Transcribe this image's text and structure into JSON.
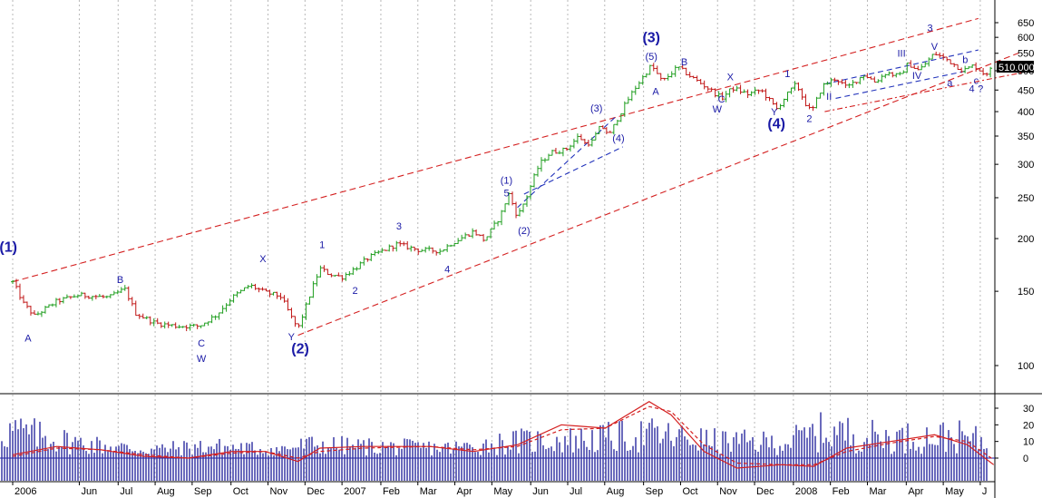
{
  "chart_data": [
    {
      "type": "ohlc",
      "title": "",
      "xlabel": "",
      "ylabel": "",
      "yscale": "log",
      "ylim": [
        70,
        690
      ],
      "grid": "vertical dotted",
      "colors": {
        "up": "#1f9e1f",
        "down": "#c01616",
        "channel": "#d42020",
        "subchannel": "#2233bb",
        "labels": "#1a1aa6"
      },
      "y_ticks": [
        "100",
        "150",
        "200",
        "250",
        "300",
        "350",
        "400",
        "450",
        "500",
        "550",
        "600",
        "650"
      ],
      "last_price_label": "510.000",
      "last_price": 510,
      "price_path": [
        {
          "t": 0,
          "v": 158
        },
        {
          "t": 0.5,
          "v": 140
        },
        {
          "t": 1.0,
          "v": 131
        },
        {
          "t": 2.0,
          "v": 142
        },
        {
          "t": 3.0,
          "v": 147
        },
        {
          "t": 4.4,
          "v": 145
        },
        {
          "t": 5.1,
          "v": 152
        },
        {
          "t": 5.6,
          "v": 133
        },
        {
          "t": 6.5,
          "v": 126
        },
        {
          "t": 7.5,
          "v": 124
        },
        {
          "t": 8.5,
          "v": 124
        },
        {
          "t": 9.3,
          "v": 132
        },
        {
          "t": 10.0,
          "v": 145
        },
        {
          "t": 10.8,
          "v": 155
        },
        {
          "t": 11.5,
          "v": 149
        },
        {
          "t": 12.2,
          "v": 146
        },
        {
          "t": 12.7,
          "v": 130
        },
        {
          "t": 13.0,
          "v": 122
        },
        {
          "t": 13.4,
          "v": 140
        },
        {
          "t": 14.0,
          "v": 170
        },
        {
          "t": 14.4,
          "v": 165
        },
        {
          "t": 15.0,
          "v": 162
        },
        {
          "t": 15.6,
          "v": 170
        },
        {
          "t": 16.2,
          "v": 180
        },
        {
          "t": 17.5,
          "v": 194
        },
        {
          "t": 18.5,
          "v": 188
        },
        {
          "t": 19.5,
          "v": 187
        },
        {
          "t": 20.0,
          "v": 195
        },
        {
          "t": 21.0,
          "v": 208
        },
        {
          "t": 21.5,
          "v": 198
        },
        {
          "t": 22.2,
          "v": 225
        },
        {
          "t": 22.6,
          "v": 255
        },
        {
          "t": 23.0,
          "v": 225
        },
        {
          "t": 23.4,
          "v": 250
        },
        {
          "t": 24.0,
          "v": 300
        },
        {
          "t": 24.5,
          "v": 320
        },
        {
          "t": 25.2,
          "v": 325
        },
        {
          "t": 25.8,
          "v": 350
        },
        {
          "t": 26.1,
          "v": 335
        },
        {
          "t": 26.4,
          "v": 340
        },
        {
          "t": 26.8,
          "v": 370
        },
        {
          "t": 27.2,
          "v": 352
        },
        {
          "t": 27.5,
          "v": 380
        },
        {
          "t": 28.3,
          "v": 450
        },
        {
          "t": 28.8,
          "v": 490
        },
        {
          "t": 29.1,
          "v": 515
        },
        {
          "t": 29.6,
          "v": 470
        },
        {
          "t": 30.3,
          "v": 510
        },
        {
          "t": 31.0,
          "v": 480
        },
        {
          "t": 31.8,
          "v": 450
        },
        {
          "t": 32.3,
          "v": 430
        },
        {
          "t": 32.8,
          "v": 455
        },
        {
          "t": 33.5,
          "v": 440
        },
        {
          "t": 34.1,
          "v": 450
        },
        {
          "t": 34.8,
          "v": 405
        },
        {
          "t": 35.3,
          "v": 440
        },
        {
          "t": 35.7,
          "v": 465
        },
        {
          "t": 36.1,
          "v": 420
        },
        {
          "t": 36.4,
          "v": 398
        },
        {
          "t": 36.9,
          "v": 460
        },
        {
          "t": 37.5,
          "v": 480
        },
        {
          "t": 38.0,
          "v": 455
        },
        {
          "t": 38.8,
          "v": 490
        },
        {
          "t": 39.3,
          "v": 470
        },
        {
          "t": 39.8,
          "v": 495
        },
        {
          "t": 40.4,
          "v": 485
        },
        {
          "t": 40.8,
          "v": 520
        },
        {
          "t": 41.3,
          "v": 500
        },
        {
          "t": 42.0,
          "v": 550
        },
        {
          "t": 42.6,
          "v": 530
        },
        {
          "t": 43.3,
          "v": 500
        },
        {
          "t": 43.8,
          "v": 515
        },
        {
          "t": 44.3,
          "v": 490
        },
        {
          "t": 44.7,
          "v": 510
        }
      ],
      "indicator": {
        "y_ticks": [
          "30",
          "20",
          "10",
          "0"
        ],
        "ylim": [
          -12,
          36
        ],
        "histogram_path": [
          {
            "t": 0,
            "v": 16
          },
          {
            "t": 3,
            "v": 9
          },
          {
            "t": 6,
            "v": 5
          },
          {
            "t": 9,
            "v": 7
          },
          {
            "t": 12,
            "v": 5
          },
          {
            "t": 13.5,
            "v": 8
          },
          {
            "t": 16,
            "v": 7
          },
          {
            "t": 20,
            "v": 6
          },
          {
            "t": 23,
            "v": 10
          },
          {
            "t": 26,
            "v": 11
          },
          {
            "t": 29,
            "v": 14
          },
          {
            "t": 32,
            "v": 10
          },
          {
            "t": 35,
            "v": 9
          },
          {
            "t": 37,
            "v": 16
          },
          {
            "t": 40,
            "v": 12
          },
          {
            "t": 43,
            "v": 13
          },
          {
            "t": 45,
            "v": 8
          }
        ],
        "oscillator": [
          {
            "t": 0,
            "v": 2
          },
          {
            "t": 2,
            "v": 7
          },
          {
            "t": 4,
            "v": 5
          },
          {
            "t": 6,
            "v": 1
          },
          {
            "t": 8,
            "v": 0
          },
          {
            "t": 10,
            "v": 4
          },
          {
            "t": 11.5,
            "v": 4
          },
          {
            "t": 13,
            "v": -2
          },
          {
            "t": 14,
            "v": 6
          },
          {
            "t": 16,
            "v": 7
          },
          {
            "t": 19,
            "v": 7
          },
          {
            "t": 21,
            "v": 4
          },
          {
            "t": 23,
            "v": 8
          },
          {
            "t": 25,
            "v": 20
          },
          {
            "t": 27,
            "v": 18
          },
          {
            "t": 29,
            "v": 34
          },
          {
            "t": 30,
            "v": 26
          },
          {
            "t": 31.5,
            "v": 4
          },
          {
            "t": 33,
            "v": -6
          },
          {
            "t": 35,
            "v": -4
          },
          {
            "t": 36.5,
            "v": -5
          },
          {
            "t": 38,
            "v": 6
          },
          {
            "t": 40,
            "v": 10
          },
          {
            "t": 42,
            "v": 14
          },
          {
            "t": 43.5,
            "v": 8
          },
          {
            "t": 44.7,
            "v": -4
          }
        ],
        "signal": [
          {
            "t": 0,
            "v": 1
          },
          {
            "t": 2,
            "v": 6
          },
          {
            "t": 4,
            "v": 5
          },
          {
            "t": 6,
            "v": 2
          },
          {
            "t": 8,
            "v": 0
          },
          {
            "t": 10,
            "v": 3
          },
          {
            "t": 11.5,
            "v": 4
          },
          {
            "t": 13,
            "v": 0
          },
          {
            "t": 14,
            "v": 4
          },
          {
            "t": 16,
            "v": 6
          },
          {
            "t": 19,
            "v": 7
          },
          {
            "t": 21,
            "v": 5
          },
          {
            "t": 23,
            "v": 7
          },
          {
            "t": 25,
            "v": 17
          },
          {
            "t": 27,
            "v": 18
          },
          {
            "t": 29,
            "v": 31
          },
          {
            "t": 30,
            "v": 28
          },
          {
            "t": 31.5,
            "v": 8
          },
          {
            "t": 33,
            "v": -3
          },
          {
            "t": 35,
            "v": -4
          },
          {
            "t": 36.5,
            "v": -4
          },
          {
            "t": 38,
            "v": 4
          },
          {
            "t": 40,
            "v": 9
          },
          {
            "t": 42,
            "v": 13
          },
          {
            "t": 43.5,
            "v": 10
          },
          {
            "t": 44.7,
            "v": -1
          }
        ]
      },
      "x_ticks": [
        {
          "label": "2006",
          "t": 0
        },
        {
          "label": "Jun",
          "t": 3.6
        },
        {
          "label": "Jul",
          "t": 5.7
        },
        {
          "label": "Aug",
          "t": 7.7
        },
        {
          "label": "Sep",
          "t": 9.7
        },
        {
          "label": "Oct",
          "t": 11.8
        },
        {
          "label": "Nov",
          "t": 13.8
        },
        {
          "label": "Dec",
          "t": 15.8
        },
        {
          "label": "2007",
          "t": 17.8
        },
        {
          "label": "Feb",
          "t": 19.9
        },
        {
          "label": "Mar",
          "t": 21.9
        },
        {
          "label": "Apr",
          "t": 23.9
        },
        {
          "label": "May",
          "t": 25.9
        },
        {
          "label": "Jun",
          "t": 28.0
        },
        {
          "label": "Jul",
          "t": 30.0
        },
        {
          "label": "Aug",
          "t": 32.0
        },
        {
          "label": "Sep",
          "t": 34.1
        },
        {
          "label": "Oct",
          "t": 36.1
        },
        {
          "label": "Nov",
          "t": 38.1
        },
        {
          "label": "Dec",
          "t": 40.1
        },
        {
          "label": "2008",
          "t": 42.2
        },
        {
          "label": "Feb",
          "t": 44.2
        },
        {
          "label": "Mar",
          "t": 46.2
        },
        {
          "label": "Apr",
          "t": 48.3
        },
        {
          "label": "May",
          "t": 50.3
        },
        {
          "label": "J",
          "t": 52.3
        }
      ],
      "channels": [
        {
          "name": "",
          "style": "red-dashed",
          "p1": {
            "t": 0,
            "v": 158
          },
          "p2": {
            "t": 44,
            "v": 665
          }
        },
        {
          "name": "",
          "style": "red-dashed",
          "p1": {
            "t": 13.0,
            "v": 118
          },
          "p2": {
            "t": 46.0,
            "v": 555
          }
        },
        {
          "name": "",
          "style": "red-dashdot",
          "p1": {
            "t": 37.0,
            "v": 400
          },
          "p2": {
            "t": 46.0,
            "v": 495
          }
        },
        {
          "name": "",
          "style": "blue-dashed",
          "p1": {
            "t": 37.0,
            "v": 465
          },
          "p2": {
            "t": 44.0,
            "v": 560
          }
        },
        {
          "name": "",
          "style": "blue-dashed",
          "p1": {
            "t": 37.5,
            "v": 430
          },
          "p2": {
            "t": 43.5,
            "v": 500
          }
        },
        {
          "name": "",
          "style": "blue-dashed",
          "p1": {
            "t": 23.0,
            "v": 237
          },
          "p2": {
            "t": 27.5,
            "v": 390
          }
        },
        {
          "name": "",
          "style": "blue-dashed",
          "p1": {
            "t": 23.3,
            "v": 255
          },
          "p2": {
            "t": 27.8,
            "v": 330
          }
        }
      ],
      "wave_labels": [
        {
          "text": "(1)",
          "t": -0.2,
          "v": 186,
          "size": "large"
        },
        {
          "text": "A",
          "t": 0.7,
          "v": 114,
          "size": "small"
        },
        {
          "text": "B",
          "t": 4.9,
          "v": 157,
          "size": "small"
        },
        {
          "text": "C",
          "t": 8.6,
          "v": 111,
          "size": "small"
        },
        {
          "text": "W",
          "t": 8.6,
          "v": 102,
          "size": "small"
        },
        {
          "text": "X",
          "t": 11.4,
          "v": 176,
          "size": "small"
        },
        {
          "text": "Y",
          "t": 12.7,
          "v": 115,
          "size": "small"
        },
        {
          "text": "(2)",
          "t": 13.1,
          "v": 107,
          "size": "large"
        },
        {
          "text": "1",
          "t": 14.1,
          "v": 190,
          "size": "small"
        },
        {
          "text": "2",
          "t": 15.6,
          "v": 148,
          "size": "small"
        },
        {
          "text": "3",
          "t": 17.6,
          "v": 210,
          "size": "small"
        },
        {
          "text": "4",
          "t": 19.8,
          "v": 166,
          "size": "small"
        },
        {
          "text": "(1)",
          "t": 22.5,
          "v": 270,
          "size": "small"
        },
        {
          "text": "5",
          "t": 22.5,
          "v": 252,
          "size": "small"
        },
        {
          "text": "(2)",
          "t": 23.3,
          "v": 205,
          "size": "small"
        },
        {
          "text": "(3)",
          "t": 26.6,
          "v": 400,
          "size": "small"
        },
        {
          "text": "(4)",
          "t": 27.6,
          "v": 340,
          "size": "small"
        },
        {
          "text": "(3)",
          "t": 29.1,
          "v": 585,
          "size": "large"
        },
        {
          "text": "(5)",
          "t": 29.1,
          "v": 530,
          "size": "small"
        },
        {
          "text": "A",
          "t": 29.3,
          "v": 438,
          "size": "small"
        },
        {
          "text": "B",
          "t": 30.6,
          "v": 515,
          "size": "small"
        },
        {
          "text": "X",
          "t": 32.7,
          "v": 475,
          "size": "small"
        },
        {
          "text": "C",
          "t": 32.3,
          "v": 420,
          "size": "small"
        },
        {
          "text": "W",
          "t": 32.1,
          "v": 398,
          "size": "small"
        },
        {
          "text": "Y",
          "t": 34.7,
          "v": 392,
          "size": "small"
        },
        {
          "text": "(4)",
          "t": 34.8,
          "v": 365,
          "size": "large"
        },
        {
          "text": "1",
          "t": 35.3,
          "v": 483,
          "size": "small"
        },
        {
          "text": "2",
          "t": 36.3,
          "v": 378,
          "size": "small"
        },
        {
          "text": "II",
          "t": 37.2,
          "v": 427,
          "size": "small"
        },
        {
          "text": "III",
          "t": 40.5,
          "v": 540,
          "size": "small"
        },
        {
          "text": "IV",
          "t": 41.2,
          "v": 478,
          "size": "small"
        },
        {
          "text": "3",
          "t": 41.8,
          "v": 620,
          "size": "small"
        },
        {
          "text": "V",
          "t": 42.0,
          "v": 560,
          "size": "small"
        },
        {
          "text": "a",
          "t": 42.7,
          "v": 460,
          "size": "small"
        },
        {
          "text": "b",
          "t": 43.4,
          "v": 522,
          "size": "small"
        },
        {
          "text": "c",
          "t": 43.9,
          "v": 465,
          "size": "small"
        },
        {
          "text": "4",
          "t": 43.7,
          "v": 445,
          "size": "small"
        },
        {
          "text": "?",
          "t": 44.1,
          "v": 445,
          "size": "small"
        }
      ]
    }
  ]
}
